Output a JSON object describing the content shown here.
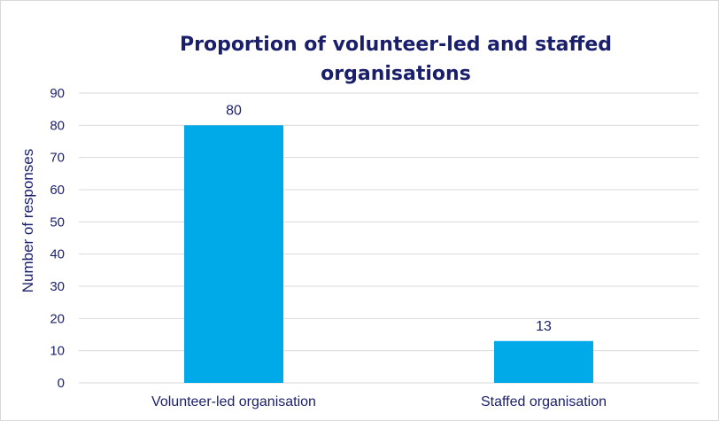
{
  "chart_data": {
    "type": "bar",
    "title_lines": [
      "Proportion of volunteer-led and staffed",
      "organisations"
    ],
    "xlabel": "",
    "ylabel": "Number of responses",
    "categories": [
      "Volunteer-led organisation",
      "Staffed organisation"
    ],
    "values": [
      80,
      13
    ],
    "ylim": [
      0,
      90
    ],
    "ytick_step": 10,
    "grid": true,
    "data_labels": true,
    "bar_color": "#00a9e8",
    "text_color": "#1a1f6b",
    "grid_color": "#d9d9d9"
  }
}
